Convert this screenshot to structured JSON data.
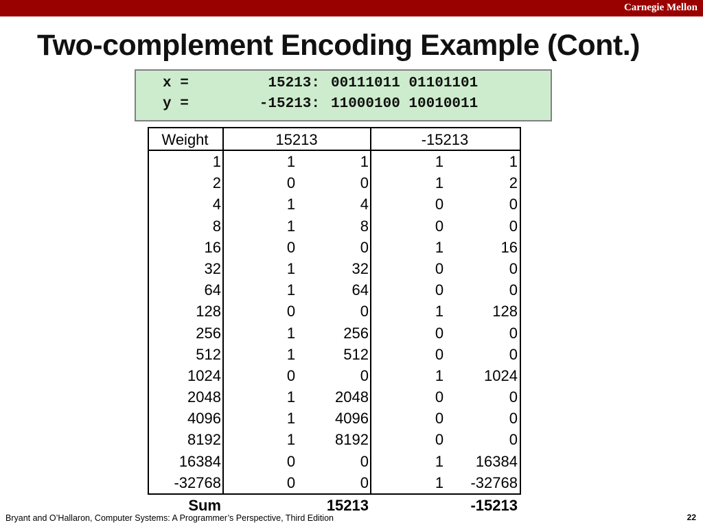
{
  "header": {
    "brand": "Carnegie Mellon"
  },
  "title": "Two-complement Encoding Example (Cont.)",
  "code": {
    "lines": [
      {
        "label": "x =",
        "number": "15213:",
        "bits": "00111011 01101101"
      },
      {
        "label": "y =",
        "number": "-15213:",
        "bits": "11000100 10010011"
      }
    ]
  },
  "table": {
    "header": [
      "Weight",
      "15213",
      "-15213"
    ],
    "rows": [
      [
        1,
        1,
        1,
        1,
        1
      ],
      [
        2,
        0,
        0,
        1,
        2
      ],
      [
        4,
        1,
        4,
        0,
        0
      ],
      [
        8,
        1,
        8,
        0,
        0
      ],
      [
        16,
        0,
        0,
        1,
        16
      ],
      [
        32,
        1,
        32,
        0,
        0
      ],
      [
        64,
        1,
        64,
        0,
        0
      ],
      [
        128,
        0,
        0,
        1,
        128
      ],
      [
        256,
        1,
        256,
        0,
        0
      ],
      [
        512,
        1,
        512,
        0,
        0
      ],
      [
        1024,
        0,
        0,
        1,
        1024
      ],
      [
        2048,
        1,
        2048,
        0,
        0
      ],
      [
        4096,
        1,
        4096,
        0,
        0
      ],
      [
        8192,
        1,
        8192,
        0,
        0
      ],
      [
        16384,
        0,
        0,
        1,
        16384
      ],
      [
        -32768,
        0,
        0,
        1,
        -32768
      ]
    ],
    "sum": {
      "label": "Sum",
      "values": [
        15213,
        -15213
      ]
    }
  },
  "footer": {
    "citation": "Bryant and O’Hallaron, Computer Systems: A Programmer’s Perspective, Third Edition",
    "page": 22
  }
}
